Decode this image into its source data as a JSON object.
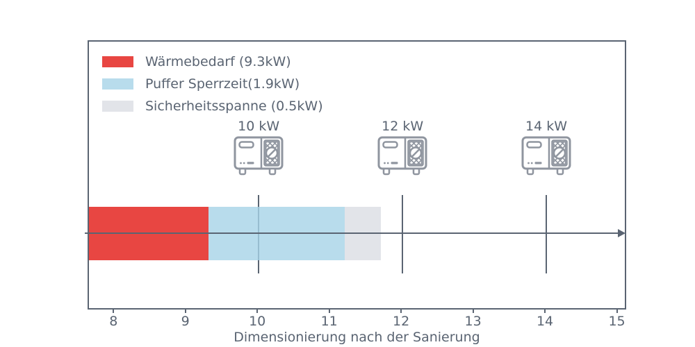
{
  "chart_data": {
    "type": "bar",
    "orientation": "horizontal-stacked",
    "title": "",
    "xlabel": "Dimensionierung nach der Sanierung",
    "ylabel": "",
    "grid": false,
    "legend_position": "upper-left",
    "xlim": [
      7.64,
      15.13
    ],
    "xtick_labels": [
      "8",
      "9",
      "10",
      "11",
      "12",
      "13",
      "14",
      "15"
    ],
    "xtick_values": [
      8,
      9,
      10,
      11,
      12,
      13,
      14,
      15
    ],
    "legend": [
      {
        "label": "Wärmebedarf (9.3kW)",
        "value_kw": 9.3,
        "swatch_color": "#e84642"
      },
      {
        "label": "Puffer Sperrzeit(1.9kW)",
        "value_kw": 1.9,
        "swatch_color": "#b8dcec"
      },
      {
        "label": "Sicherheitsspanne (0.5kW)",
        "value_kw": 0.5,
        "swatch_color": "#e2e4e9"
      }
    ],
    "bar_segments": [
      {
        "name": "waermebedarf",
        "from": 7.64,
        "to": 9.3,
        "fill": "rgba(226,24,19,0.8)"
      },
      {
        "name": "puffer-sperrzeit",
        "from": 9.3,
        "to": 11.2,
        "fill": "rgba(166,211,231,0.8)"
      },
      {
        "name": "sicherheitsspanne",
        "from": 11.2,
        "to": 11.7,
        "fill": "rgba(219,221,228,0.8)"
      }
    ],
    "heat_pumps": [
      {
        "label": "10 kW",
        "value": 10
      },
      {
        "label": "12 kW",
        "value": 12
      },
      {
        "label": "14 kW",
        "value": 14
      }
    ],
    "arrow": {
      "from_value": 7.58,
      "to_value": 15.0
    }
  },
  "colors": {
    "axis": "#5a6472",
    "text": "#5a6472",
    "icon_stroke": "#8f959f",
    "background": "#ffffff"
  }
}
